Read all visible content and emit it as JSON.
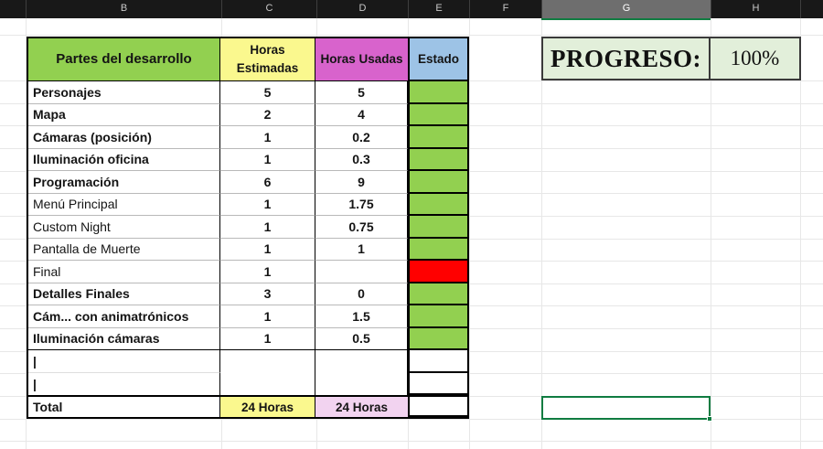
{
  "spreadsheet": {
    "column_letters": [
      "B",
      "C",
      "D",
      "E",
      "F",
      "G",
      "H"
    ],
    "selected_column": "G"
  },
  "table": {
    "headers": [
      {
        "label": "Partes del desarrollo"
      },
      {
        "label": "Horas Estimadas"
      },
      {
        "label": "Horas Usadas"
      },
      {
        "label": "Estado"
      }
    ],
    "rows": [
      {
        "name": "Personajes",
        "bold": true,
        "estimated": "5",
        "used": "5",
        "status": "green"
      },
      {
        "name": "Mapa",
        "bold": true,
        "estimated": "2",
        "used": "4",
        "status": "green"
      },
      {
        "name": "Cámaras (posición)",
        "bold": true,
        "estimated": "1",
        "used": "0.2",
        "status": "green"
      },
      {
        "name": "Iluminación oficina",
        "bold": true,
        "estimated": "1",
        "used": "0.3",
        "status": "green"
      },
      {
        "name": "Programación",
        "bold": true,
        "estimated": "6",
        "used": "9",
        "status": "green"
      },
      {
        "name": "Menú Principal",
        "bold": false,
        "estimated": "1",
        "used": "1.75",
        "status": "green"
      },
      {
        "name": "Custom Night",
        "bold": false,
        "estimated": "1",
        "used": "0.75",
        "status": "green"
      },
      {
        "name": "Pantalla de Muerte",
        "bold": false,
        "estimated": "1",
        "used": "1",
        "status": "green"
      },
      {
        "name": "Final",
        "bold": false,
        "estimated": "1",
        "used": "",
        "status": "red"
      },
      {
        "name": "Detalles Finales",
        "bold": true,
        "estimated": "3",
        "used": "0",
        "status": "green"
      },
      {
        "name": "Cám... con animatrónicos",
        "bold": true,
        "estimated": "1",
        "used": "1.5",
        "status": "green"
      },
      {
        "name": "Iluminación cámaras",
        "bold": true,
        "estimated": "1",
        "used": "0.5",
        "status": "green"
      },
      {
        "name": "|",
        "bold": true,
        "estimated": "",
        "used": "",
        "status": "none"
      },
      {
        "name": "|",
        "bold": true,
        "estimated": "",
        "used": "",
        "status": "none"
      }
    ],
    "total": {
      "label": "Total",
      "estimated": "24 Horas",
      "used": "24 Horas"
    }
  },
  "progress": {
    "label": "PROGRESO:",
    "value": "100%"
  },
  "colors": {
    "green": "#92D050",
    "yellow": "#FAF88E",
    "magenta": "#D863CC",
    "blue": "#9DC3E6",
    "red": "#FF0000",
    "pink": "#F2D3F0",
    "progress_bg": "#E2EFDA",
    "selection": "#107C41"
  }
}
